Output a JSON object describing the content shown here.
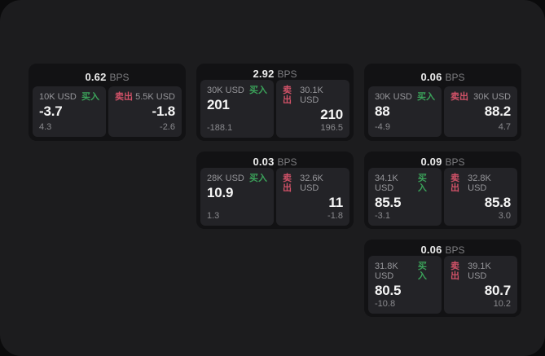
{
  "labels": {
    "bps": "BPS",
    "buy": "买入",
    "sell": "卖出"
  },
  "colors": {
    "background_outer": "#0b0b0c",
    "background_panel": "#1c1c1e",
    "card_background": "#121214",
    "tile_background": "#232327",
    "buy_green": "#3ba35a",
    "sell_red": "#d25268",
    "price_text": "#f5f5f5",
    "muted_text": "#8a8a8e"
  },
  "cards": [
    {
      "bps": "0.62",
      "buy": {
        "size": "10K USD",
        "price": "-3.7",
        "sub": "4.3"
      },
      "sell": {
        "size": "5.5K USD",
        "price": "-1.8",
        "sub": "-2.6"
      }
    },
    {
      "bps": "2.92",
      "buy": {
        "size": "30K USD",
        "price": "201",
        "sub": "-188.1"
      },
      "sell": {
        "size": "30.1K USD",
        "price": "210",
        "sub": "196.5"
      }
    },
    {
      "bps": "0.06",
      "buy": {
        "size": "30K USD",
        "price": "88",
        "sub": "-4.9"
      },
      "sell": {
        "size": "30K USD",
        "price": "88.2",
        "sub": "4.7"
      }
    },
    {
      "bps": "0.03",
      "buy": {
        "size": "28K USD",
        "price": "10.9",
        "sub": "1.3"
      },
      "sell": {
        "size": "32.6K USD",
        "price": "11",
        "sub": "-1.8"
      }
    },
    {
      "bps": "0.09",
      "buy": {
        "size": "34.1K USD",
        "price": "85.5",
        "sub": "-3.1"
      },
      "sell": {
        "size": "32.8K USD",
        "price": "85.8",
        "sub": "3.0"
      }
    },
    {
      "bps": "0.06",
      "buy": {
        "size": "31.8K USD",
        "price": "80.5",
        "sub": "-10.8"
      },
      "sell": {
        "size": "39.1K USD",
        "price": "80.7",
        "sub": "10.2"
      }
    }
  ]
}
